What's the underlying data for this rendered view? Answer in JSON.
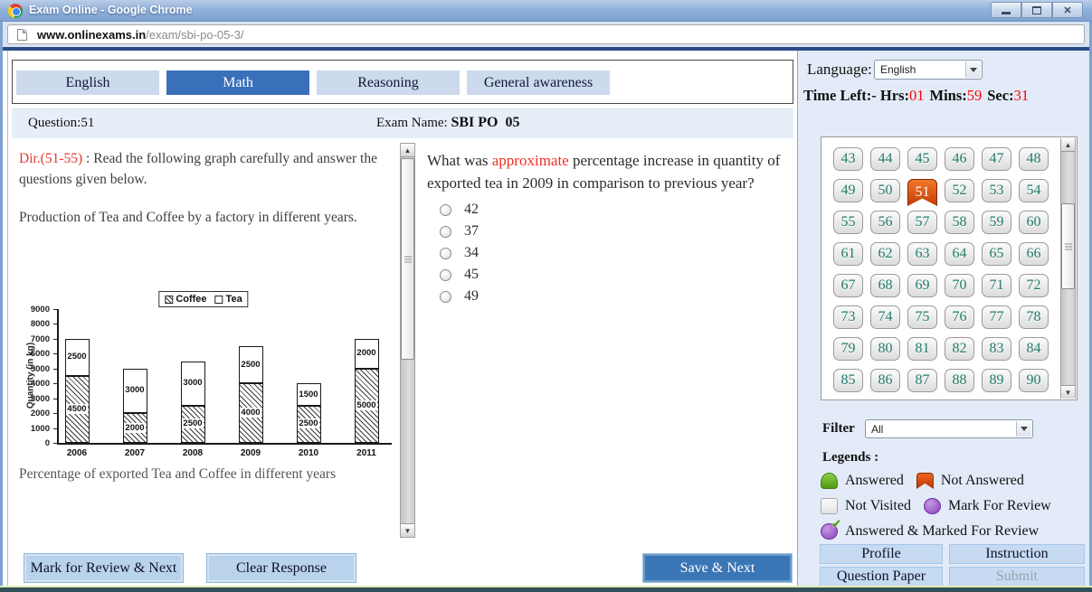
{
  "window": {
    "title": "Exam Online - Google Chrome",
    "url": {
      "host": "www.onlinexams.in",
      "path": "/exam/sbi-po-05-3/"
    }
  },
  "tabs": [
    {
      "label": "English",
      "active": false
    },
    {
      "label": "Math",
      "active": true
    },
    {
      "label": "Reasoning",
      "active": false
    },
    {
      "label": "General awareness",
      "active": false
    }
  ],
  "question_header": {
    "question_label": "Question:",
    "question_number": "51",
    "exam_label": "Exam Name: ",
    "exam_name": "SBI PO  05"
  },
  "directions": {
    "dir_ref": "Dir.(51-55)",
    "dir_text": " : Read the following graph carefully and answer the questions given below.",
    "subtitle": "Production of Tea and Coffee by a factory in different years.",
    "caption": "Percentage of exported Tea and Coffee in different years"
  },
  "question": {
    "text_before": "What was ",
    "text_highlight": "approximate",
    "text_after": " percentage increase in quantity of exported tea in 2009 in comparison to previous year?",
    "options": [
      "42",
      "37",
      "34",
      "45",
      "49"
    ]
  },
  "chart_data": {
    "type": "bar",
    "stacked": true,
    "categories": [
      "2006",
      "2007",
      "2008",
      "2009",
      "2010",
      "2011"
    ],
    "series": [
      {
        "name": "Coffee",
        "pattern": "hatched",
        "values": [
          4500,
          2000,
          2500,
          4000,
          2500,
          5000
        ]
      },
      {
        "name": "Tea",
        "pattern": "plain",
        "values": [
          2500,
          3000,
          3000,
          2500,
          1500,
          2000
        ]
      }
    ],
    "title": "",
    "xlabel": "",
    "ylabel": "Quantity (in kg)",
    "ylim": [
      0,
      9000
    ],
    "ytick_step": 1000,
    "legend_position": "top",
    "bar_value_labels": true
  },
  "sidebar": {
    "language_label": "Language:",
    "language_value": "English",
    "time": {
      "label": "Time Left:-",
      "hrs_label": "Hrs:",
      "hrs": "01",
      "mins_label": "Mins:",
      "mins": "59",
      "sec_label": "Sec:",
      "sec": "31"
    },
    "palette": {
      "numbers": [
        43,
        44,
        45,
        46,
        47,
        48,
        49,
        50,
        51,
        52,
        53,
        54,
        55,
        56,
        57,
        58,
        59,
        60,
        61,
        62,
        63,
        64,
        65,
        66,
        67,
        68,
        69,
        70,
        71,
        72,
        73,
        74,
        75,
        76,
        77,
        78,
        79,
        80,
        81,
        82,
        83,
        84,
        85,
        86,
        87,
        88,
        89,
        90
      ],
      "current": 51
    },
    "filter_label": "Filter",
    "filter_value": "All",
    "legends_title": "Legends :",
    "legends": [
      {
        "name": "answered",
        "label": "Answered",
        "color": "#61ae25"
      },
      {
        "name": "not-answered",
        "label": "Not Answered",
        "color": "#d2400c"
      },
      {
        "name": "not-visited",
        "label": "Not Visited",
        "color": "#f0f0f0"
      },
      {
        "name": "mark-for-review",
        "label": "Mark For Review",
        "color": "#9b59c8"
      },
      {
        "name": "answered-marked-for-review",
        "label": "Answered & Marked For Review",
        "color": "#9b59c8"
      }
    ],
    "legend_rows": [
      [
        0,
        1
      ],
      [
        2,
        3
      ],
      [
        4
      ]
    ],
    "buttons": [
      {
        "label": "Profile",
        "enabled": true
      },
      {
        "label": "Instruction",
        "enabled": true
      },
      {
        "label": "Question Paper",
        "enabled": true
      },
      {
        "label": "Submit",
        "enabled": false
      }
    ]
  },
  "footer": {
    "mark_review": "Mark for Review & Next",
    "clear_response": "Clear Response",
    "save_next": "Save & Next"
  },
  "colors": {
    "active_tab": "#3a6fba",
    "current_question": "#d84e0e",
    "time_value": "#ff0000",
    "highlight_text": "#f03022"
  }
}
